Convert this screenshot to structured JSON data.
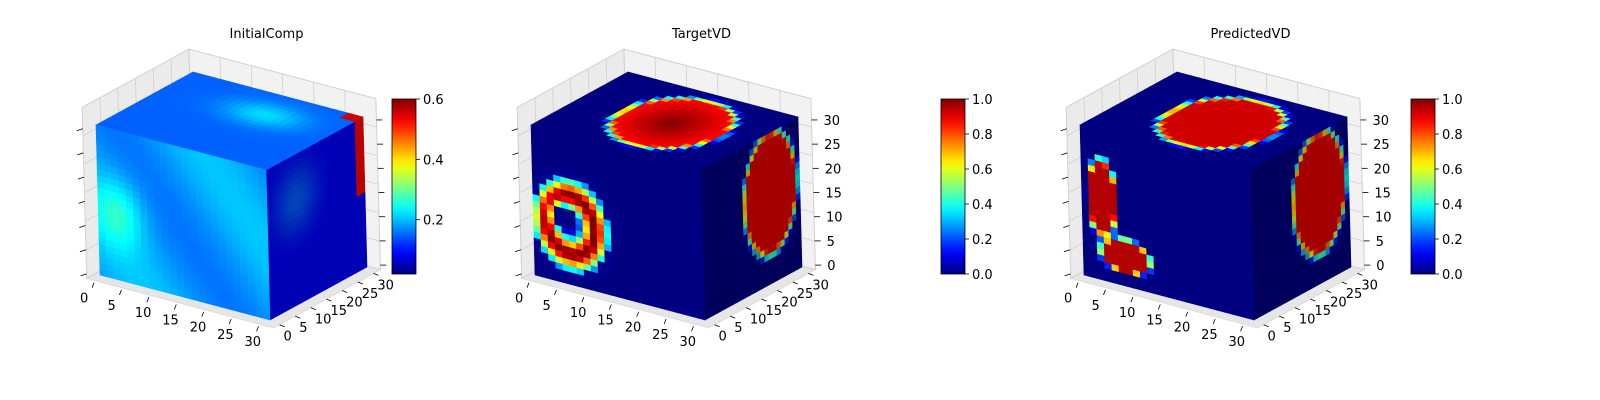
{
  "chart_data": [
    {
      "type": "heatmap",
      "title": "InitialComp",
      "x_ticks": [
        "0",
        "5",
        "10",
        "15",
        "20",
        "25",
        "30"
      ],
      "y_ticks": [
        "0",
        "5",
        "10",
        "15",
        "20",
        "25",
        "30"
      ],
      "z_ticks": [],
      "colorbar": {
        "min": 0.02,
        "max": 0.6,
        "ticks": [
          "0.2",
          "0.4",
          "0.6"
        ],
        "colormap": "jet"
      },
      "grid": true,
      "value_range": [
        0.02,
        0.6
      ]
    },
    {
      "type": "heatmap",
      "title": "TargetVD",
      "x_ticks": [
        "0",
        "5",
        "10",
        "15",
        "20",
        "25",
        "30"
      ],
      "y_ticks": [
        "0",
        "5",
        "10",
        "15",
        "20",
        "25",
        "30"
      ],
      "z_ticks": [
        "0",
        "5",
        "10",
        "15",
        "20",
        "25",
        "30"
      ],
      "colorbar": {
        "min": 0.0,
        "max": 1.0,
        "ticks": [
          "0.0",
          "0.2",
          "0.4",
          "0.6",
          "0.8",
          "1.0"
        ],
        "colormap": "jet"
      },
      "grid": true,
      "value_range": [
        0.0,
        1.0
      ]
    },
    {
      "type": "heatmap",
      "title": "PredictedVD",
      "x_ticks": [
        "0",
        "5",
        "10",
        "15",
        "20",
        "25",
        "30"
      ],
      "y_ticks": [
        "0",
        "5",
        "10",
        "15",
        "20",
        "25",
        "30"
      ],
      "z_ticks": [
        "0",
        "5",
        "10",
        "15",
        "20",
        "25",
        "30"
      ],
      "colorbar": {
        "min": 0.0,
        "max": 1.0,
        "ticks": [
          "0.0",
          "0.2",
          "0.4",
          "0.6",
          "0.8",
          "1.0"
        ],
        "colormap": "jet"
      },
      "grid": true,
      "value_range": [
        0.0,
        1.0
      ]
    }
  ]
}
